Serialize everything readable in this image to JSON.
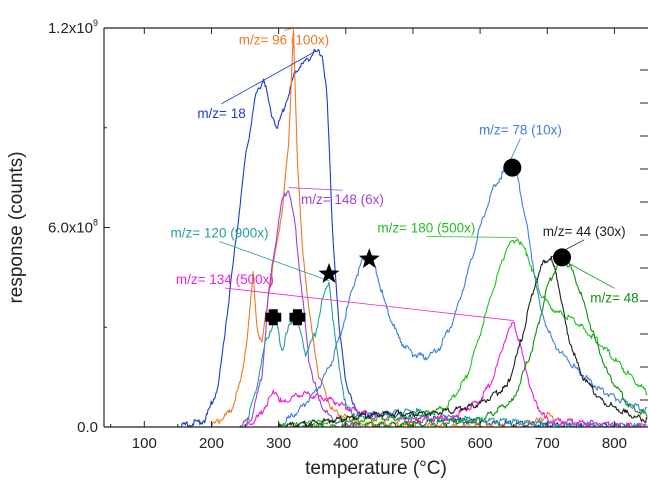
{
  "chart_data": {
    "type": "line",
    "xlabel": "temperature (°C)",
    "ylabel": "response (counts)",
    "xlim": [
      40,
      850
    ],
    "ylim": [
      0,
      1200000000.0
    ],
    "x_ticks": [
      100,
      200,
      300,
      400,
      500,
      600,
      700,
      800
    ],
    "y_ticks": [
      {
        "value": 0,
        "mantissa": "0.0",
        "exponent": ""
      },
      {
        "value": 600000000,
        "mantissa": "6.0x10",
        "exponent": "8"
      },
      {
        "value": 1200000000,
        "mantissa": "1.2x10",
        "exponent": "9"
      }
    ],
    "grid": false,
    "legend": "none",
    "series": [
      {
        "label": "m/z= 18",
        "color": "#1a3cc8",
        "x": [
          40,
          150,
          190,
          210,
          230,
          250,
          265,
          278,
          288,
          298,
          310,
          325,
          340,
          355,
          365,
          372,
          380,
          390,
          400,
          410,
          420,
          440,
          460,
          500,
          600,
          700,
          850
        ],
        "y": [
          0,
          0,
          20000000,
          120000000,
          450000000,
          800000000,
          990000000,
          1050000000,
          950000000,
          900000000,
          970000000,
          1070000000,
          1100000000,
          1130000000,
          1120000000,
          1000000000,
          600000000,
          300000000,
          140000000,
          70000000,
          45000000,
          40000000,
          38000000,
          30000000,
          15000000,
          5000000,
          0
        ]
      },
      {
        "label": "m/z= 96 (100x)",
        "color": "#f07820",
        "x": [
          40,
          200,
          230,
          245,
          255,
          262,
          268,
          275,
          285,
          295,
          305,
          315,
          322,
          328,
          335,
          345,
          360,
          380,
          420,
          500,
          650,
          690,
          700,
          710,
          720,
          850
        ],
        "y": [
          0,
          0,
          50000000,
          150000000,
          300000000,
          460000000,
          300000000,
          250000000,
          400000000,
          520000000,
          650000000,
          850000000,
          1200000000,
          800000000,
          550000000,
          350000000,
          150000000,
          50000000,
          10000000,
          5000000,
          0,
          20000000,
          40000000,
          20000000,
          0,
          0
        ]
      },
      {
        "label": "m/z= 148 (6x)",
        "color": "#a040d8",
        "x": [
          40,
          240,
          260,
          275,
          285,
          295,
          305,
          315,
          325,
          335,
          345,
          360,
          380,
          420,
          850
        ],
        "y": [
          0,
          0,
          30000000,
          150000000,
          400000000,
          550000000,
          680000000,
          720000000,
          600000000,
          400000000,
          200000000,
          80000000,
          20000000,
          0,
          0
        ]
      },
      {
        "label": "m/z= 120 (900x)",
        "color": "#20a0a0",
        "x": [
          40,
          250,
          265,
          280,
          295,
          305,
          315,
          325,
          340,
          355,
          365,
          375,
          385,
          400,
          420,
          460,
          500,
          540,
          600,
          700,
          850
        ],
        "y": [
          0,
          0,
          100000000,
          250000000,
          330000000,
          230000000,
          300000000,
          340000000,
          220000000,
          280000000,
          380000000,
          440000000,
          250000000,
          60000000,
          30000000,
          40000000,
          50000000,
          30000000,
          20000000,
          10000000,
          0
        ]
      },
      {
        "label": "m/z= 134 (500x)",
        "color": "#f020d8",
        "x": [
          40,
          250,
          270,
          285,
          295,
          305,
          320,
          340,
          360,
          380,
          400,
          440,
          500,
          560,
          600,
          620,
          635,
          650,
          665,
          680,
          700,
          850
        ],
        "y": [
          0,
          0,
          30000000,
          80000000,
          110000000,
          70000000,
          90000000,
          100000000,
          90000000,
          80000000,
          60000000,
          30000000,
          20000000,
          30000000,
          80000000,
          150000000,
          250000000,
          320000000,
          200000000,
          80000000,
          20000000,
          0
        ]
      },
      {
        "label": "m/z= 78 (10x)",
        "color": "#3a80e0",
        "x": [
          40,
          300,
          330,
          360,
          380,
          395,
          410,
          425,
          435,
          445,
          460,
          480,
          500,
          520,
          540,
          560,
          580,
          600,
          620,
          640,
          655,
          670,
          690,
          710,
          740,
          780,
          820,
          850
        ],
        "y": [
          0,
          0,
          50000000,
          120000000,
          200000000,
          300000000,
          420000000,
          500000000,
          510000000,
          470000000,
          360000000,
          260000000,
          220000000,
          210000000,
          240000000,
          320000000,
          450000000,
          600000000,
          720000000,
          780000000,
          760000000,
          600000000,
          350000000,
          250000000,
          180000000,
          110000000,
          70000000,
          50000000
        ]
      },
      {
        "label": "m/z= 180 (500x)",
        "color": "#20c020",
        "x": [
          40,
          300,
          400,
          500,
          550,
          580,
          600,
          620,
          640,
          655,
          670,
          690,
          710,
          740,
          780,
          820,
          850
        ],
        "y": [
          0,
          0,
          20000000,
          30000000,
          60000000,
          150000000,
          280000000,
          420000000,
          540000000,
          570000000,
          520000000,
          400000000,
          350000000,
          320000000,
          250000000,
          160000000,
          100000000
        ]
      },
      {
        "label": "m/z= 44 (30x)",
        "color": "#202020",
        "x": [
          40,
          300,
          380,
          450,
          520,
          560,
          600,
          640,
          660,
          680,
          695,
          705,
          715,
          730,
          750,
          780,
          800,
          830,
          850
        ],
        "y": [
          0,
          0,
          20000000,
          40000000,
          40000000,
          50000000,
          70000000,
          120000000,
          250000000,
          420000000,
          500000000,
          510000000,
          450000000,
          280000000,
          160000000,
          80000000,
          60000000,
          30000000,
          20000000
        ]
      },
      {
        "label": "m/z= 48",
        "color": "#109010",
        "x": [
          40,
          350,
          500,
          600,
          650,
          680,
          700,
          715,
          725,
          735,
          750,
          770,
          790,
          820,
          850
        ],
        "y": [
          0,
          0,
          10000000,
          20000000,
          80000000,
          250000000,
          420000000,
          490000000,
          500000000,
          480000000,
          400000000,
          270000000,
          160000000,
          70000000,
          30000000
        ]
      }
    ],
    "annotations": [
      {
        "text": "m/z= 18",
        "color": "#1a3cc8",
        "series": 0,
        "x": 215,
        "y": 930000000
      },
      {
        "text": "m/z= 96 (100x)",
        "color": "#f07820",
        "series": 1,
        "x": 308,
        "y": 1150000000
      },
      {
        "text": "m/z= 148 (6x)",
        "color": "#a040d8",
        "series": 2,
        "x": 395,
        "y": 670000000
      },
      {
        "text": "m/z= 120 (900x)",
        "color": "#20a0a0",
        "series": 3,
        "x": 212,
        "y": 570000000
      },
      {
        "text": "m/z= 134 (500x)",
        "color": "#f020d8",
        "series": 4,
        "x": 220,
        "y": 430000000
      },
      {
        "text": "m/z= 78 (10x)",
        "color": "#3a80e0",
        "series": 5,
        "x": 660,
        "y": 880000000
      },
      {
        "text": "m/z= 180 (500x)",
        "color": "#20c020",
        "series": 6,
        "x": 520,
        "y": 585000000
      },
      {
        "text": "m/z= 44 (30x)",
        "color": "#202020",
        "series": 7,
        "x": 755,
        "y": 575000000
      },
      {
        "text": "m/z= 48",
        "color": "#109010",
        "series": 8,
        "x": 800,
        "y": 375000000
      }
    ],
    "markers": [
      {
        "shape": "cross",
        "x": 292,
        "y": 330000000
      },
      {
        "shape": "cross",
        "x": 328,
        "y": 330000000
      },
      {
        "shape": "star",
        "x": 375,
        "y": 460000000
      },
      {
        "shape": "star",
        "x": 435,
        "y": 505000000
      },
      {
        "shape": "circle",
        "x": 648,
        "y": 780000000
      },
      {
        "shape": "circle",
        "x": 722,
        "y": 510000000
      }
    ]
  }
}
